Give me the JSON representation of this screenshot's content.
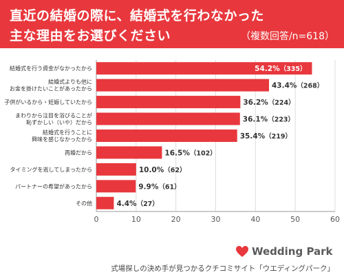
{
  "header": {
    "title_line1": "直近の結婚の際に、結婚式を行わなかった",
    "title_line2": "主な理由をお選びください",
    "subtitle": "（複数回答/n=618）"
  },
  "logo": {
    "text": "Wedding Park",
    "icon": "heart-icon"
  },
  "footer": {
    "caption": "式場探しの決め手が見つかるクチコミサイト「ウエディングパーク」"
  },
  "colors": {
    "header_bg": "#e8383d",
    "bar": "#e8383d",
    "grid": "#dddddd",
    "axis": "#999999"
  },
  "chart_data": {
    "type": "bar",
    "orientation": "horizontal",
    "categories": [
      [
        "結婚式を行う資金がなかったから"
      ],
      [
        "結婚式よりも他に",
        "お金を掛けたいことがあったから"
      ],
      [
        "子供がいるから・妊娠していたから"
      ],
      [
        "まわりから注目を浴びることが",
        "恥ずかしい（いや）だから"
      ],
      [
        "結婚式を行うことに",
        "興味を感じなかったから"
      ],
      [
        "再婚だから"
      ],
      [
        "タイミングを逃してしまったから"
      ],
      [
        "パートナーの希望があったから"
      ],
      [
        "その他"
      ]
    ],
    "values": [
      54.2,
      43.4,
      36.2,
      36.1,
      35.4,
      16.5,
      10.0,
      9.9,
      4.4
    ],
    "value_labels": [
      [
        "54.2%",
        "（335）"
      ],
      [
        "43.4%",
        "（268）"
      ],
      [
        "36.2%",
        "（224）"
      ],
      [
        "36.1%",
        "（223）"
      ],
      [
        "35.4%",
        "（219）"
      ],
      [
        "16.5%",
        "（102）"
      ],
      [
        "10.0%",
        "（62）"
      ],
      [
        "9.9%",
        "（61）"
      ],
      [
        "4.4%",
        "（27）"
      ]
    ],
    "xlim": [
      0,
      60
    ],
    "xticks": [
      "0",
      "10",
      "20",
      "30",
      "40",
      "50",
      "60"
    ],
    "grid": true
  }
}
